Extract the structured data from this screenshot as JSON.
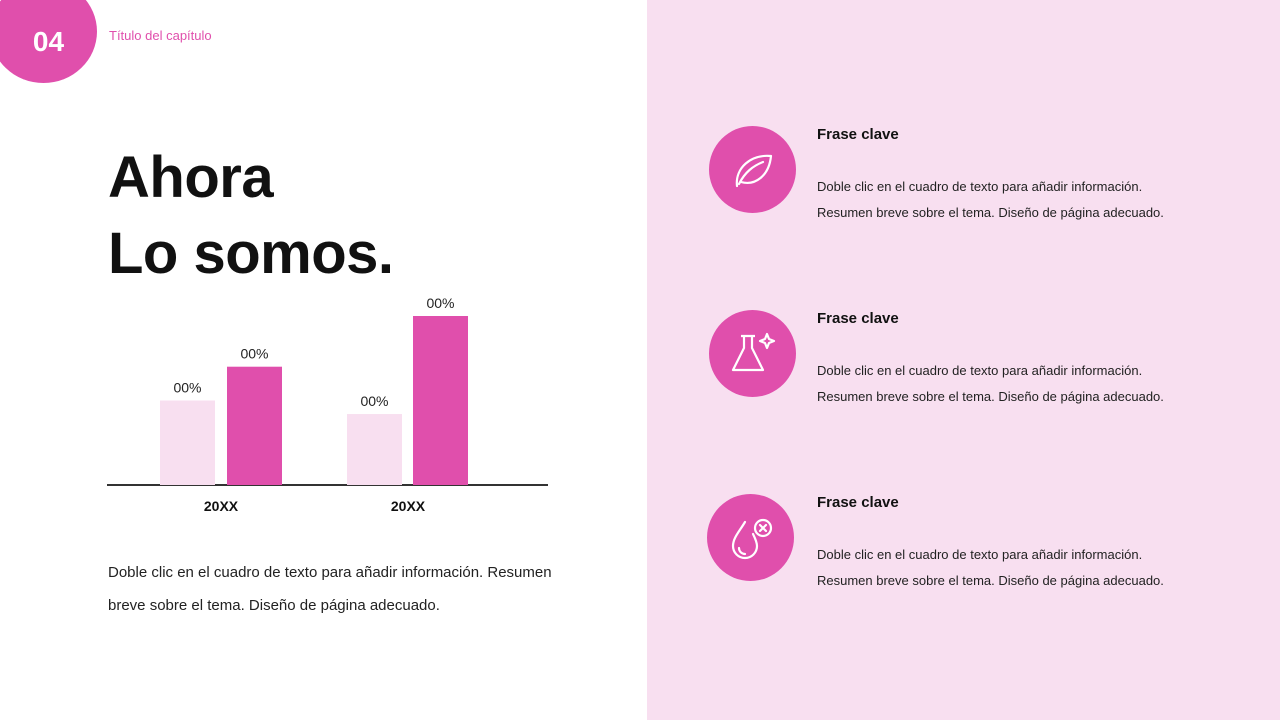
{
  "header": {
    "number": "04",
    "chapter": "Título del capítulo"
  },
  "title": {
    "line1": "Ahora",
    "line2": "Lo somos."
  },
  "paragraph": "Doble clic en el cuadro de texto para añadir información. Resumen breve sobre el tema. Diseño de página adecuado.",
  "colors": {
    "accent": "#e04fac",
    "light": "#f8dff0"
  },
  "chart_data": {
    "type": "bar",
    "categories": [
      "20XX",
      "20XX"
    ],
    "series": [
      {
        "values": [
          50,
          42
        ],
        "labels": [
          "00%",
          "00%"
        ],
        "color": "#f8dff0"
      },
      {
        "values": [
          70,
          100
        ],
        "labels": [
          "00%",
          "00%"
        ],
        "color": "#e04fac"
      }
    ],
    "ylim": [
      0,
      100
    ],
    "grid": false
  },
  "items": [
    {
      "icon": "leaf-icon",
      "title": "Frase clave",
      "text1": "Doble clic en el cuadro de texto para añadir información.",
      "text2": "Resumen breve sobre el tema. Diseño de página adecuado."
    },
    {
      "icon": "flask-sparkle-icon",
      "title": "Frase clave",
      "text1": "Doble clic en el cuadro de texto para añadir información.",
      "text2": "Resumen breve sobre el tema. Diseño de página adecuado."
    },
    {
      "icon": "drop-cross-icon",
      "title": "Frase clave",
      "text1": "Doble clic en el cuadro de texto para añadir información.",
      "text2": "Resumen breve sobre el tema. Diseño de página adecuado."
    }
  ]
}
